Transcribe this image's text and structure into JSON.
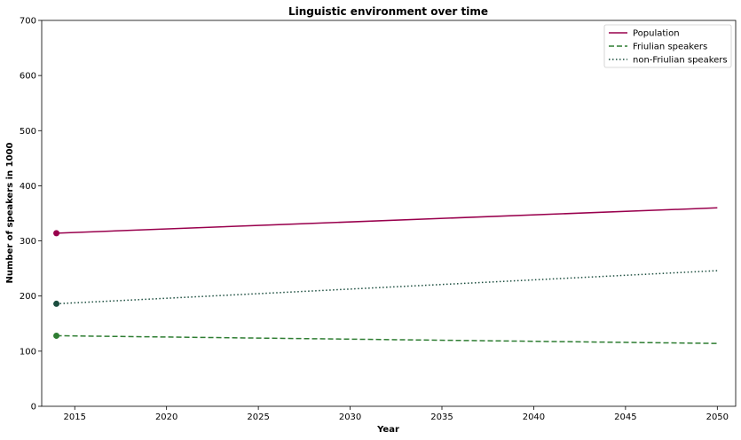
{
  "chart_data": {
    "type": "line",
    "title": "Linguistic environment over time",
    "xlabel": "Year",
    "ylabel": "Number of speakers in 1000",
    "xlim": [
      2013.2,
      2051.0
    ],
    "ylim": [
      0,
      700
    ],
    "xticks": [
      2015,
      2020,
      2025,
      2030,
      2035,
      2040,
      2045,
      2050
    ],
    "yticks": [
      0,
      100,
      200,
      300,
      400,
      500,
      600,
      700
    ],
    "grid": false,
    "legend_position": "top-right",
    "series": [
      {
        "name": "Population",
        "color": "#99004d",
        "style": "solid",
        "x": [
          2014,
          2050
        ],
        "y": [
          314,
          360
        ],
        "marker_point": [
          2014,
          314
        ]
      },
      {
        "name": "Friulian speakers",
        "color": "#2e7d32",
        "style": "dashed",
        "x": [
          2014,
          2050
        ],
        "y": [
          128,
          114
        ],
        "marker_point": [
          2014,
          128
        ]
      },
      {
        "name": "non-Friulian speakers",
        "color": "#1b4d3e",
        "style": "dotted",
        "x": [
          2014,
          2050
        ],
        "y": [
          186,
          246
        ],
        "marker_point": [
          2014,
          186
        ]
      }
    ]
  }
}
